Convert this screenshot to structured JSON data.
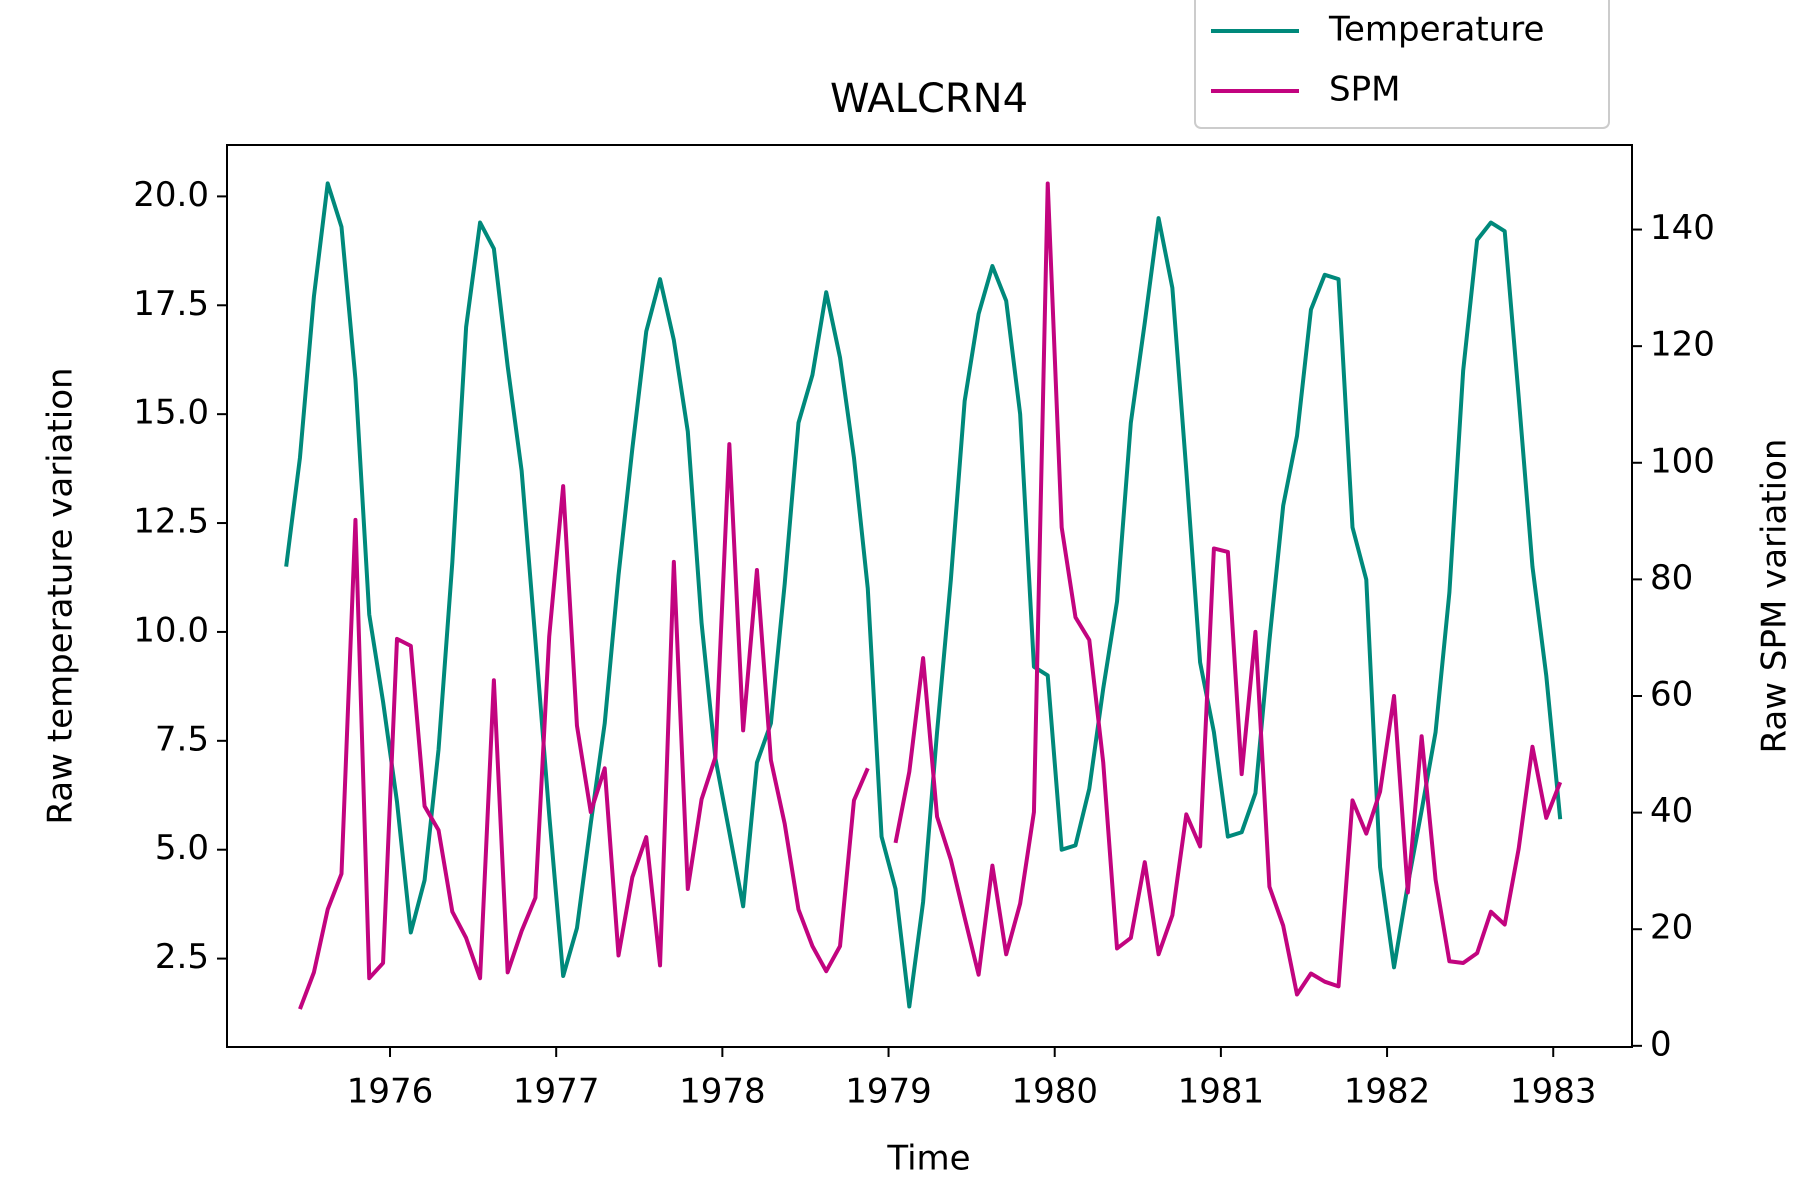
{
  "chart_data": {
    "type": "line",
    "title": "WALCRN4",
    "xlabel": "Time",
    "ylabel": "Raw temperature variation",
    "y2label": "Raw SPM variation",
    "x": [
      1975.375,
      1975.458,
      1975.542,
      1975.625,
      1975.708,
      1975.792,
      1975.875,
      1975.958,
      1976.042,
      1976.125,
      1976.208,
      1976.292,
      1976.375,
      1976.458,
      1976.542,
      1976.625,
      1976.708,
      1976.792,
      1976.875,
      1976.958,
      1977.042,
      1977.125,
      1977.208,
      1977.292,
      1977.375,
      1977.458,
      1977.542,
      1977.625,
      1977.708,
      1977.792,
      1977.875,
      1977.958,
      1978.042,
      1978.125,
      1978.208,
      1978.292,
      1978.375,
      1978.458,
      1978.542,
      1978.625,
      1978.708,
      1978.792,
      1978.875,
      1978.958,
      1979.042,
      1979.125,
      1979.208,
      1979.292,
      1979.375,
      1979.458,
      1979.542,
      1979.625,
      1979.708,
      1979.792,
      1979.875,
      1979.958,
      1980.042,
      1980.125,
      1980.208,
      1980.292,
      1980.375,
      1980.458,
      1980.542,
      1980.625,
      1980.708,
      1980.792,
      1980.875,
      1980.958,
      1981.042,
      1981.125,
      1981.208,
      1981.292,
      1981.375,
      1981.458,
      1981.542,
      1981.625,
      1981.708,
      1981.792,
      1981.875,
      1981.958,
      1982.042,
      1982.125,
      1982.208,
      1982.292,
      1982.375,
      1982.458,
      1982.542,
      1982.625,
      1982.708,
      1982.792,
      1982.875,
      1982.958,
      1983.042
    ],
    "series": [
      {
        "name": "Temperature",
        "color": "#00897b",
        "axis": "y",
        "values": [
          11.5,
          14.0,
          17.7,
          20.3,
          19.3,
          15.8,
          10.4,
          8.4,
          6.1,
          3.1,
          4.3,
          7.3,
          11.6,
          17.0,
          19.4,
          18.8,
          16.1,
          13.7,
          9.8,
          5.8,
          2.1,
          3.2,
          5.6,
          7.9,
          11.3,
          14.2,
          16.9,
          18.1,
          16.7,
          14.6,
          10.2,
          7.1,
          5.4,
          3.7,
          7.0,
          7.9,
          11.1,
          14.8,
          15.9,
          17.8,
          16.3,
          14.0,
          11.0,
          5.3,
          4.1,
          1.4,
          3.8,
          7.7,
          11.2,
          15.3,
          17.3,
          18.4,
          17.6,
          15.0,
          9.2,
          9.0,
          5.0,
          5.1,
          6.4,
          8.7,
          10.7,
          14.8,
          17.1,
          19.5,
          17.9,
          13.7,
          9.3,
          7.7,
          5.3,
          5.4,
          6.3,
          9.8,
          12.9,
          14.5,
          17.4,
          18.2,
          18.1,
          12.4,
          11.2,
          4.6,
          2.3,
          4.2,
          5.9,
          7.7,
          10.9,
          16.0,
          19.0,
          19.4,
          19.2,
          15.4,
          11.5,
          9.0,
          5.7
        ]
      },
      {
        "name": "SPM",
        "color": "#c2047f",
        "axis": "y2",
        "values": [
          null,
          6.3,
          12.6,
          23.4,
          29.5,
          90.2,
          11.6,
          14.2,
          69.8,
          68.6,
          41.1,
          37.0,
          23.0,
          18.5,
          11.6,
          62.7,
          12.6,
          19.7,
          25.4,
          70.2,
          96.0,
          54.9,
          40.1,
          47.6,
          15.5,
          28.9,
          35.8,
          13.8,
          83.0,
          26.9,
          42.3,
          49.5,
          103.2,
          54.1,
          81.6,
          49.0,
          38.1,
          23.4,
          17.1,
          12.8,
          17.1,
          42.1,
          47.6,
          null,
          34.8,
          47.0,
          66.5,
          39.3,
          31.9,
          22.0,
          12.2,
          30.9,
          15.7,
          24.4,
          40.1,
          147.9,
          88.9,
          73.5,
          69.6,
          48.6,
          16.7,
          18.5,
          31.5,
          15.7,
          22.4,
          39.7,
          34.2,
          85.3,
          84.7,
          46.6,
          71.0,
          27.3,
          20.6,
          8.8,
          12.4,
          11.0,
          10.2,
          42.1,
          36.4,
          43.6,
          60.0,
          26.3,
          53.1,
          28.5,
          14.5,
          14.2,
          15.9,
          23.0,
          20.8,
          33.8,
          51.3,
          39.1,
          45.2
        ]
      }
    ],
    "xlim": [
      1975.019,
      1983.474
    ],
    "xticks": [
      1976,
      1977,
      1978,
      1979,
      1980,
      1981,
      1982,
      1983
    ],
    "ylim": [
      0.47,
      21.18
    ],
    "yticks": [
      2.5,
      {
        "value": 5,
        "label": "5.0"
      },
      7.5,
      {
        "value": 10,
        "label": "10.0"
      },
      12.5,
      {
        "value": 15,
        "label": "15.0"
      },
      17.5,
      {
        "value": 20,
        "label": "20.0"
      }
    ],
    "y2lim": [
      -0.2,
      154.5
    ],
    "y2ticks": [
      0,
      20,
      40,
      60,
      80,
      100,
      120,
      140
    ],
    "grid": false,
    "legend": "upper right"
  }
}
